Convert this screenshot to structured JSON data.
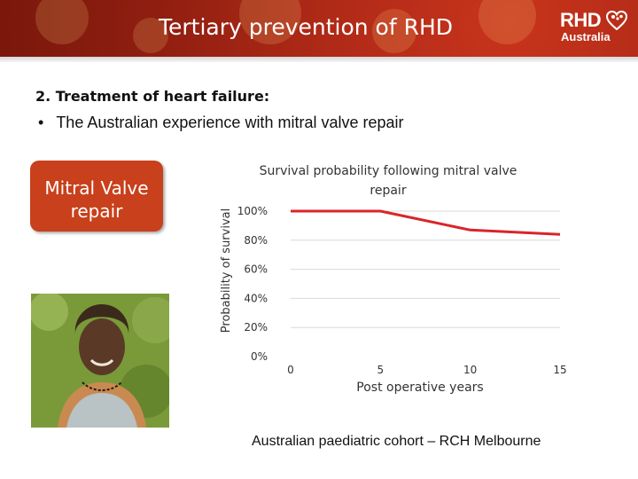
{
  "slide": {
    "title": "Tertiary prevention of RHD",
    "section_heading": "2. Treatment of heart failure:",
    "bullet_text": "The Australian experience with mitral valve repair",
    "box_label_line1": "Mitral Valve",
    "box_label_line2": "repair",
    "caption": "Australian paediatric cohort – RCH Melbourne",
    "logo": {
      "brand": "RHD",
      "country": "Australia"
    },
    "colors": {
      "banner": "#b02a17",
      "box": "#c8401c",
      "line": "#d9252a"
    }
  },
  "chart_data": {
    "type": "line",
    "title": "Survival probability following mitral valve repair",
    "xlabel": "Post operative years",
    "ylabel": "Probability of survival",
    "xlim": [
      0,
      15
    ],
    "ylim": [
      0,
      100
    ],
    "x_ticks": [
      "0",
      "5",
      "10",
      "15"
    ],
    "y_ticks": [
      "0%",
      "20%",
      "40%",
      "60%",
      "80%",
      "100%"
    ],
    "grid": "horizontal",
    "series": [
      {
        "x": [
          0,
          5,
          10,
          15
        ],
        "y": [
          100,
          100,
          87,
          84
        ]
      }
    ]
  }
}
